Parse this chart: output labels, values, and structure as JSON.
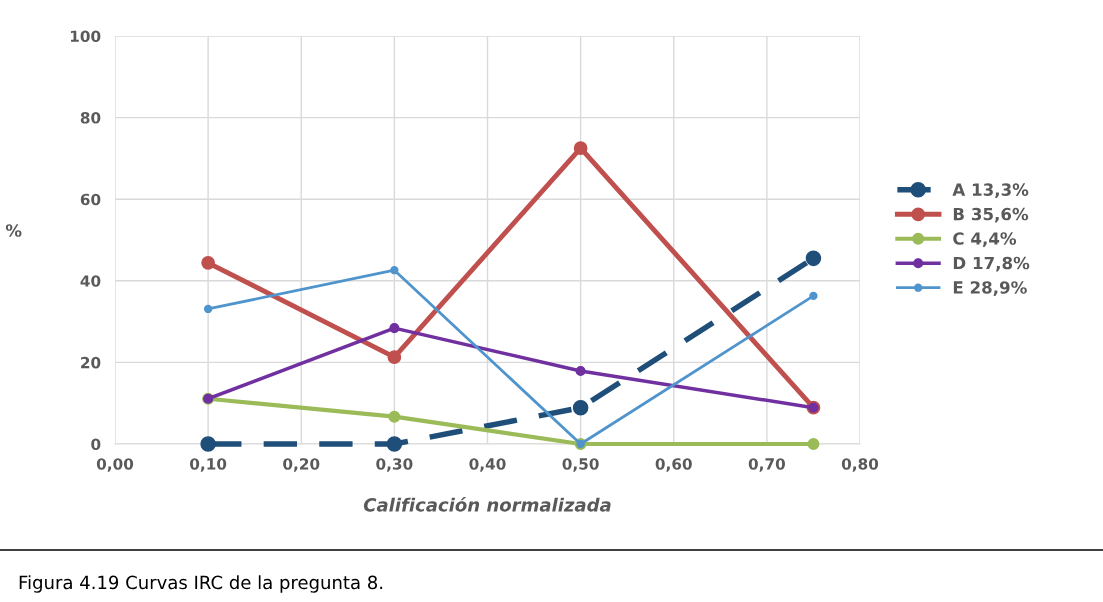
{
  "chart_data": {
    "type": "line",
    "xlabel": "Calificación normalizada",
    "ylabel": "%",
    "x": [
      0.1,
      0.3,
      0.5,
      0.75
    ],
    "xlim": [
      0,
      0.8
    ],
    "xticks": [
      {
        "value": 0,
        "label": "0,00"
      },
      {
        "value": 0.1,
        "label": "0,10"
      },
      {
        "value": 0.2,
        "label": "0,20"
      },
      {
        "value": 0.3,
        "label": "0,30"
      },
      {
        "value": 0.4,
        "label": "0,40"
      },
      {
        "value": 0.5,
        "label": "0,50"
      },
      {
        "value": 0.6,
        "label": "0,60"
      },
      {
        "value": 0.7,
        "label": "0,70"
      },
      {
        "value": 0.8,
        "label": "0,80"
      }
    ],
    "ylim": [
      0,
      100
    ],
    "yticks": [
      0,
      20,
      40,
      60,
      80,
      100
    ],
    "grid": true,
    "legend": "right",
    "marker": "circle",
    "series": [
      {
        "name": "A 13,3%",
        "color": "#1f4e79",
        "line_style": "dashed",
        "values": [
          0,
          0,
          8.9,
          45.5
        ]
      },
      {
        "name": "B 35,6%",
        "color": "#c0504d",
        "values": [
          44.4,
          21.3,
          72.5,
          8.9
        ]
      },
      {
        "name": "C 4,4%",
        "color": "#9bbb59",
        "values": [
          11.1,
          6.7,
          0,
          0
        ]
      },
      {
        "name": "D 17,8%",
        "color": "#7030a0",
        "values": [
          11.1,
          28.4,
          17.9,
          8.9
        ]
      },
      {
        "name": "E 28,9%",
        "color": "#4f94cd",
        "values": [
          33.1,
          42.6,
          0,
          36.3
        ]
      }
    ],
    "annotations": [
      "Figura 4.19 Curvas IRC de la pregunta 8."
    ]
  }
}
